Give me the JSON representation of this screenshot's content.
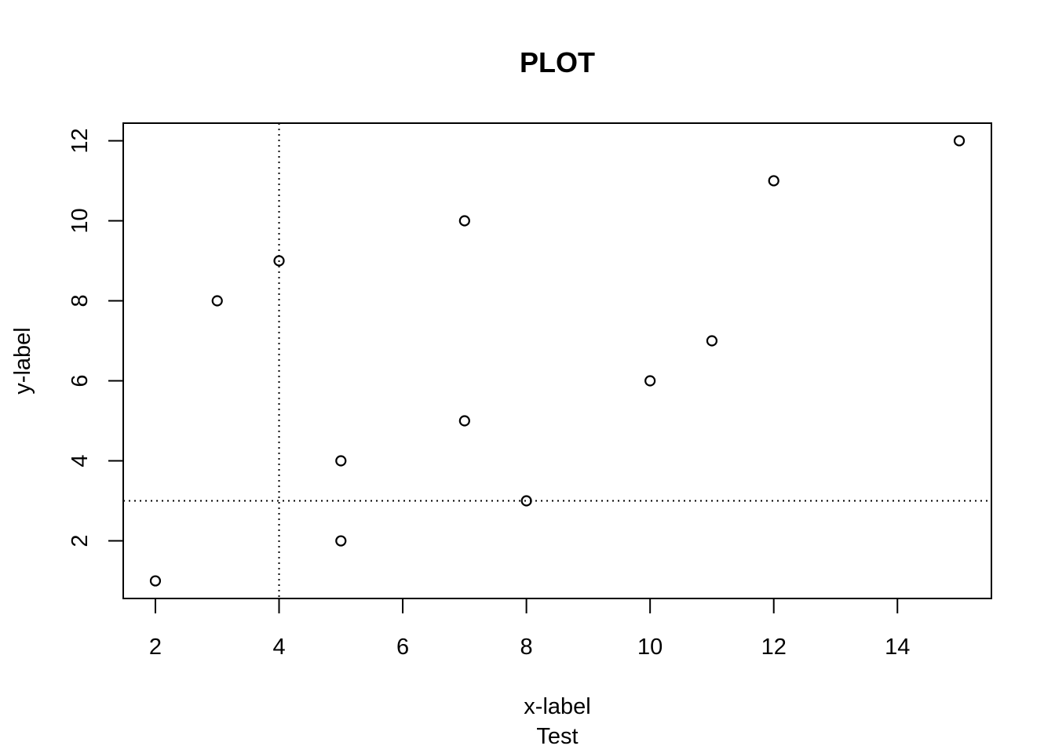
{
  "chart_data": {
    "type": "scatter",
    "title": "PLOT",
    "xlabel": "x-label",
    "sub": "Test",
    "ylabel": "y-label",
    "xlim": [
      1.48,
      15.52
    ],
    "ylim": [
      0.56,
      12.44
    ],
    "x_ticks": [
      2,
      4,
      6,
      8,
      10,
      12,
      14
    ],
    "y_ticks": [
      2,
      4,
      6,
      8,
      10,
      12
    ],
    "grid": false,
    "reference_lines": {
      "vertical_x": 4,
      "horizontal_y": 3,
      "style": "dotted"
    },
    "series": [
      {
        "x": [
          2,
          3,
          4,
          5,
          5,
          7,
          7,
          8,
          10,
          11,
          12,
          15
        ],
        "y": [
          1,
          8,
          9,
          4,
          2,
          10,
          5,
          3,
          6,
          7,
          11,
          12
        ]
      }
    ]
  }
}
